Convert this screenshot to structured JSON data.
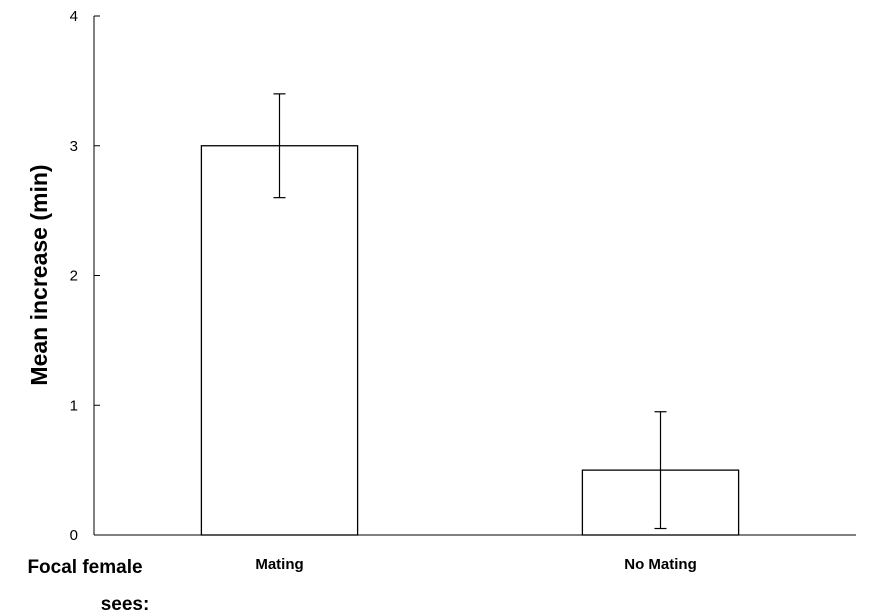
{
  "chart_data": {
    "type": "bar",
    "categories": [
      "Mating",
      "No Mating"
    ],
    "values": [
      3.0,
      0.5
    ],
    "error_upper": [
      3.4,
      0.95
    ],
    "error_lower": [
      2.6,
      0.05
    ],
    "ylabel": "Mean increase (min)",
    "xlabel": "",
    "ylim": [
      0,
      4
    ],
    "yticks": [
      "0",
      "1",
      "2",
      "3",
      "4"
    ],
    "side_label_line1": "Focal female",
    "side_label_line2": "sees:",
    "grid": false,
    "bar_fill": "#ffffff",
    "bar_stroke": "#000000"
  }
}
